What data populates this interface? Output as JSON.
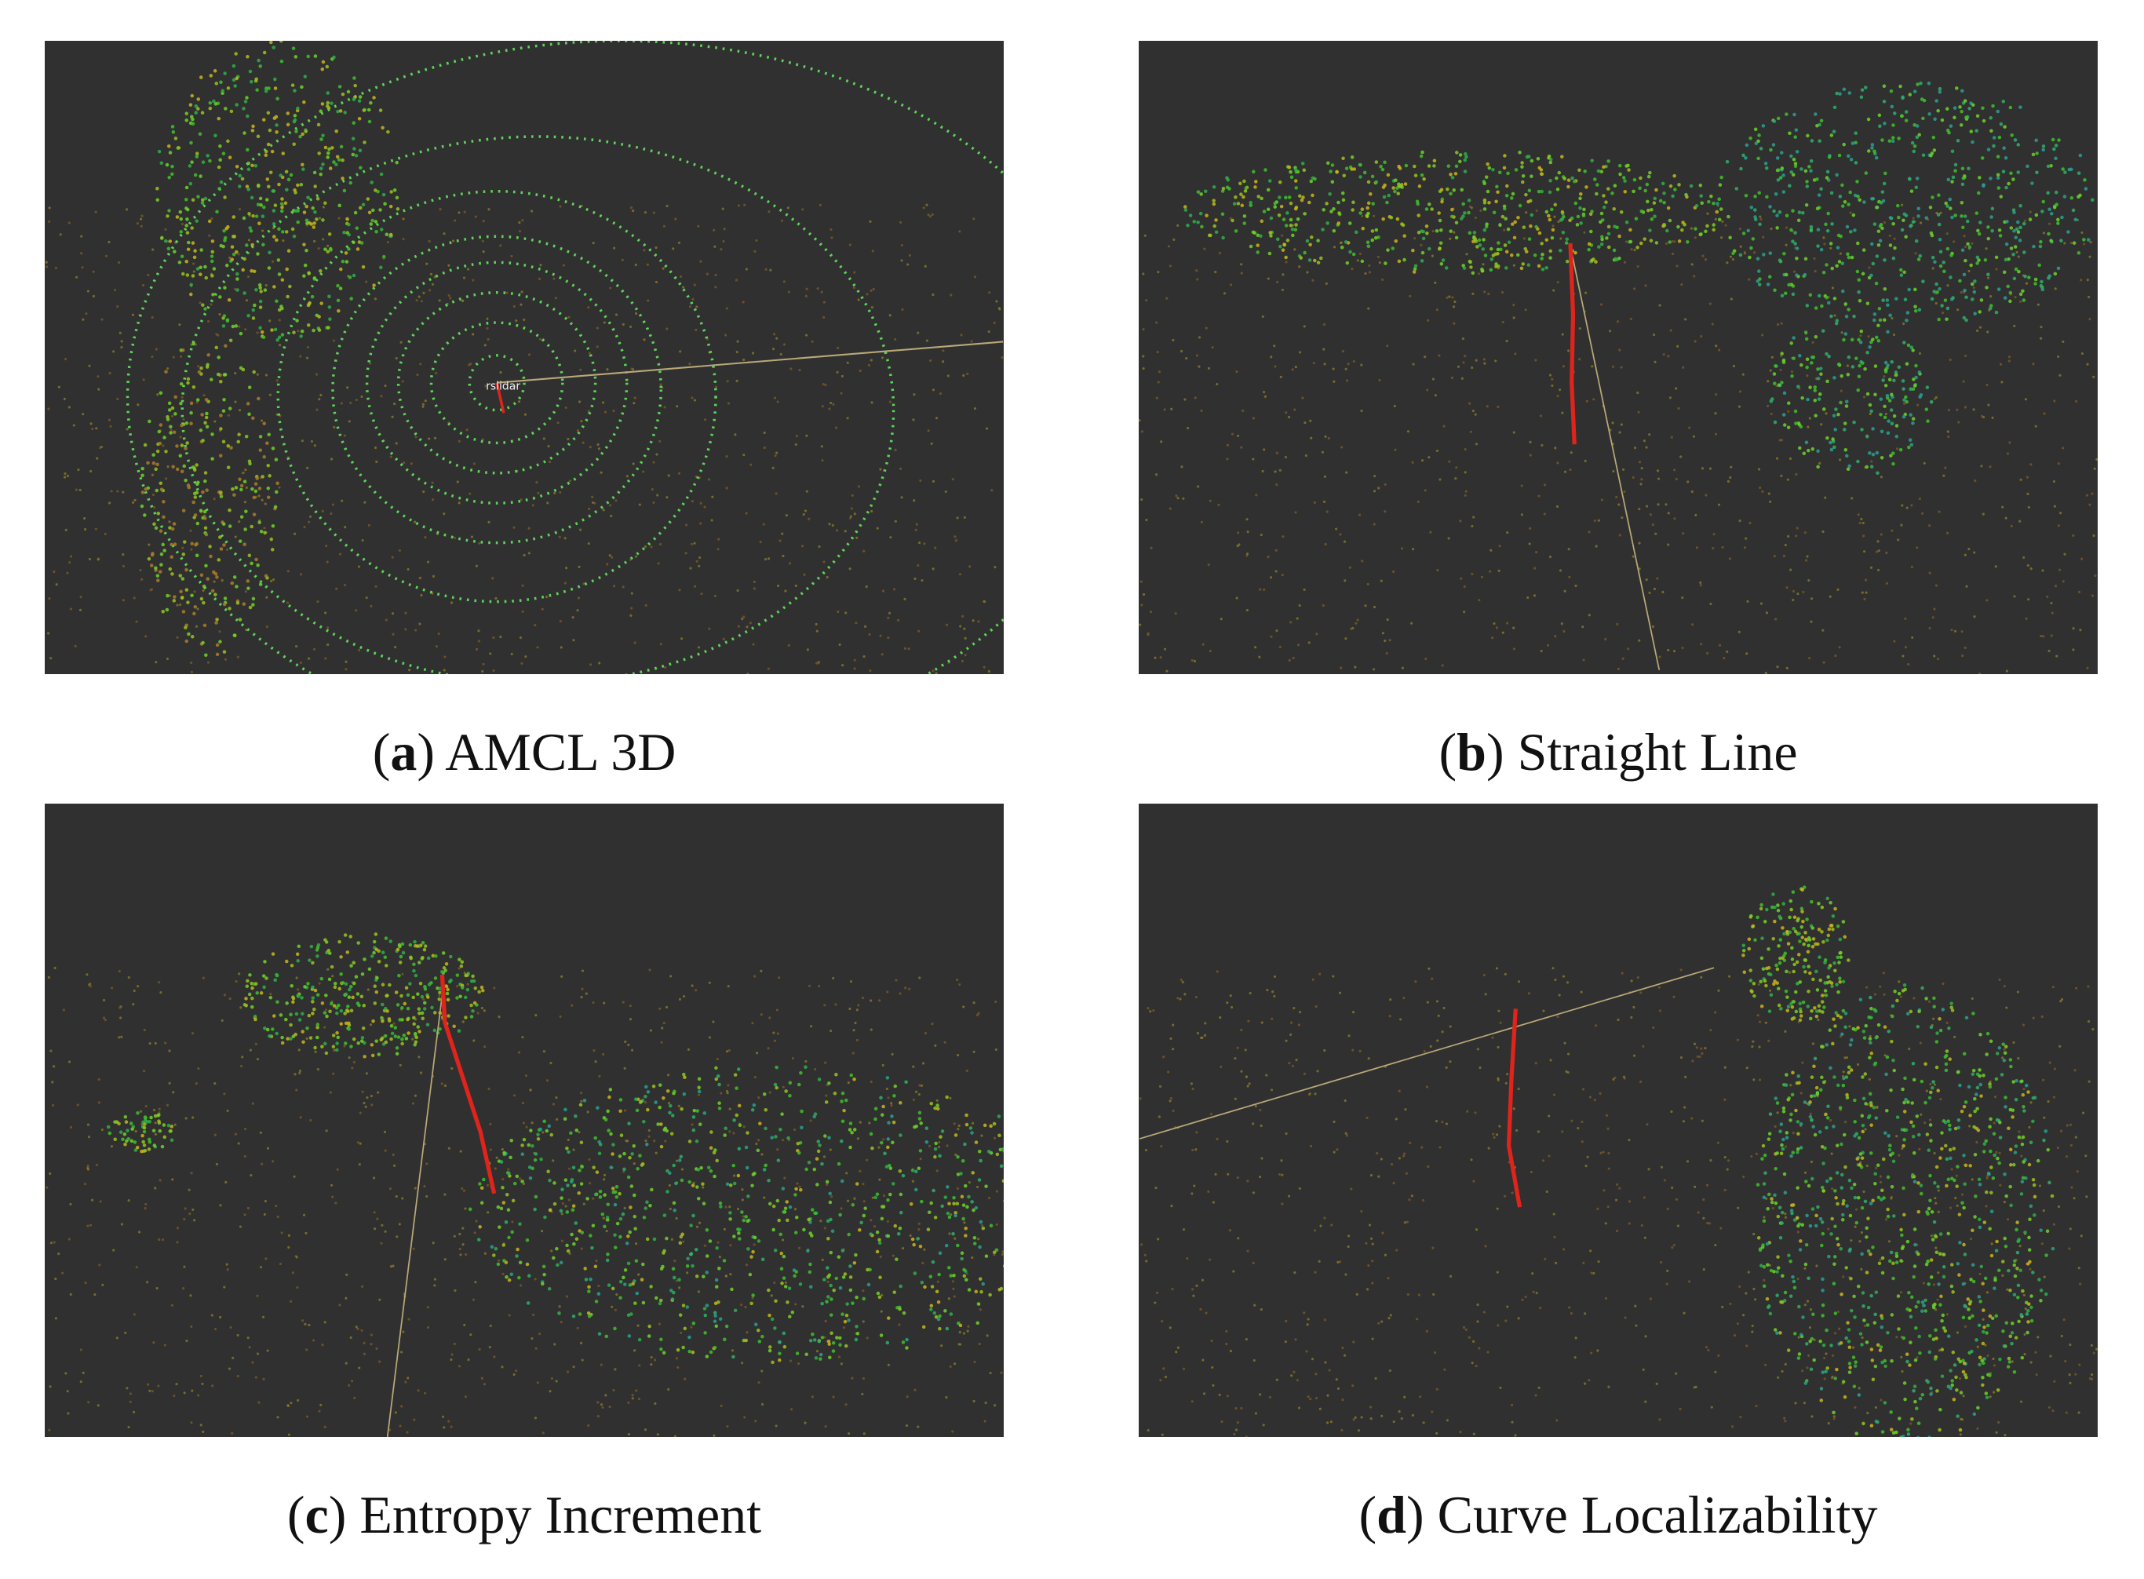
{
  "panels": [
    {
      "label": [
        "(",
        "a",
        ")"
      ],
      "caption": "AMCL 3D",
      "frame_label": "rslidar"
    },
    {
      "label": [
        "(",
        "b",
        ")"
      ],
      "caption": "Straight Line"
    },
    {
      "label": [
        "(",
        "c",
        ")"
      ],
      "caption": "Entropy Increment"
    },
    {
      "label": [
        "(",
        "d",
        ")"
      ],
      "caption": "Curve Localizability"
    }
  ]
}
